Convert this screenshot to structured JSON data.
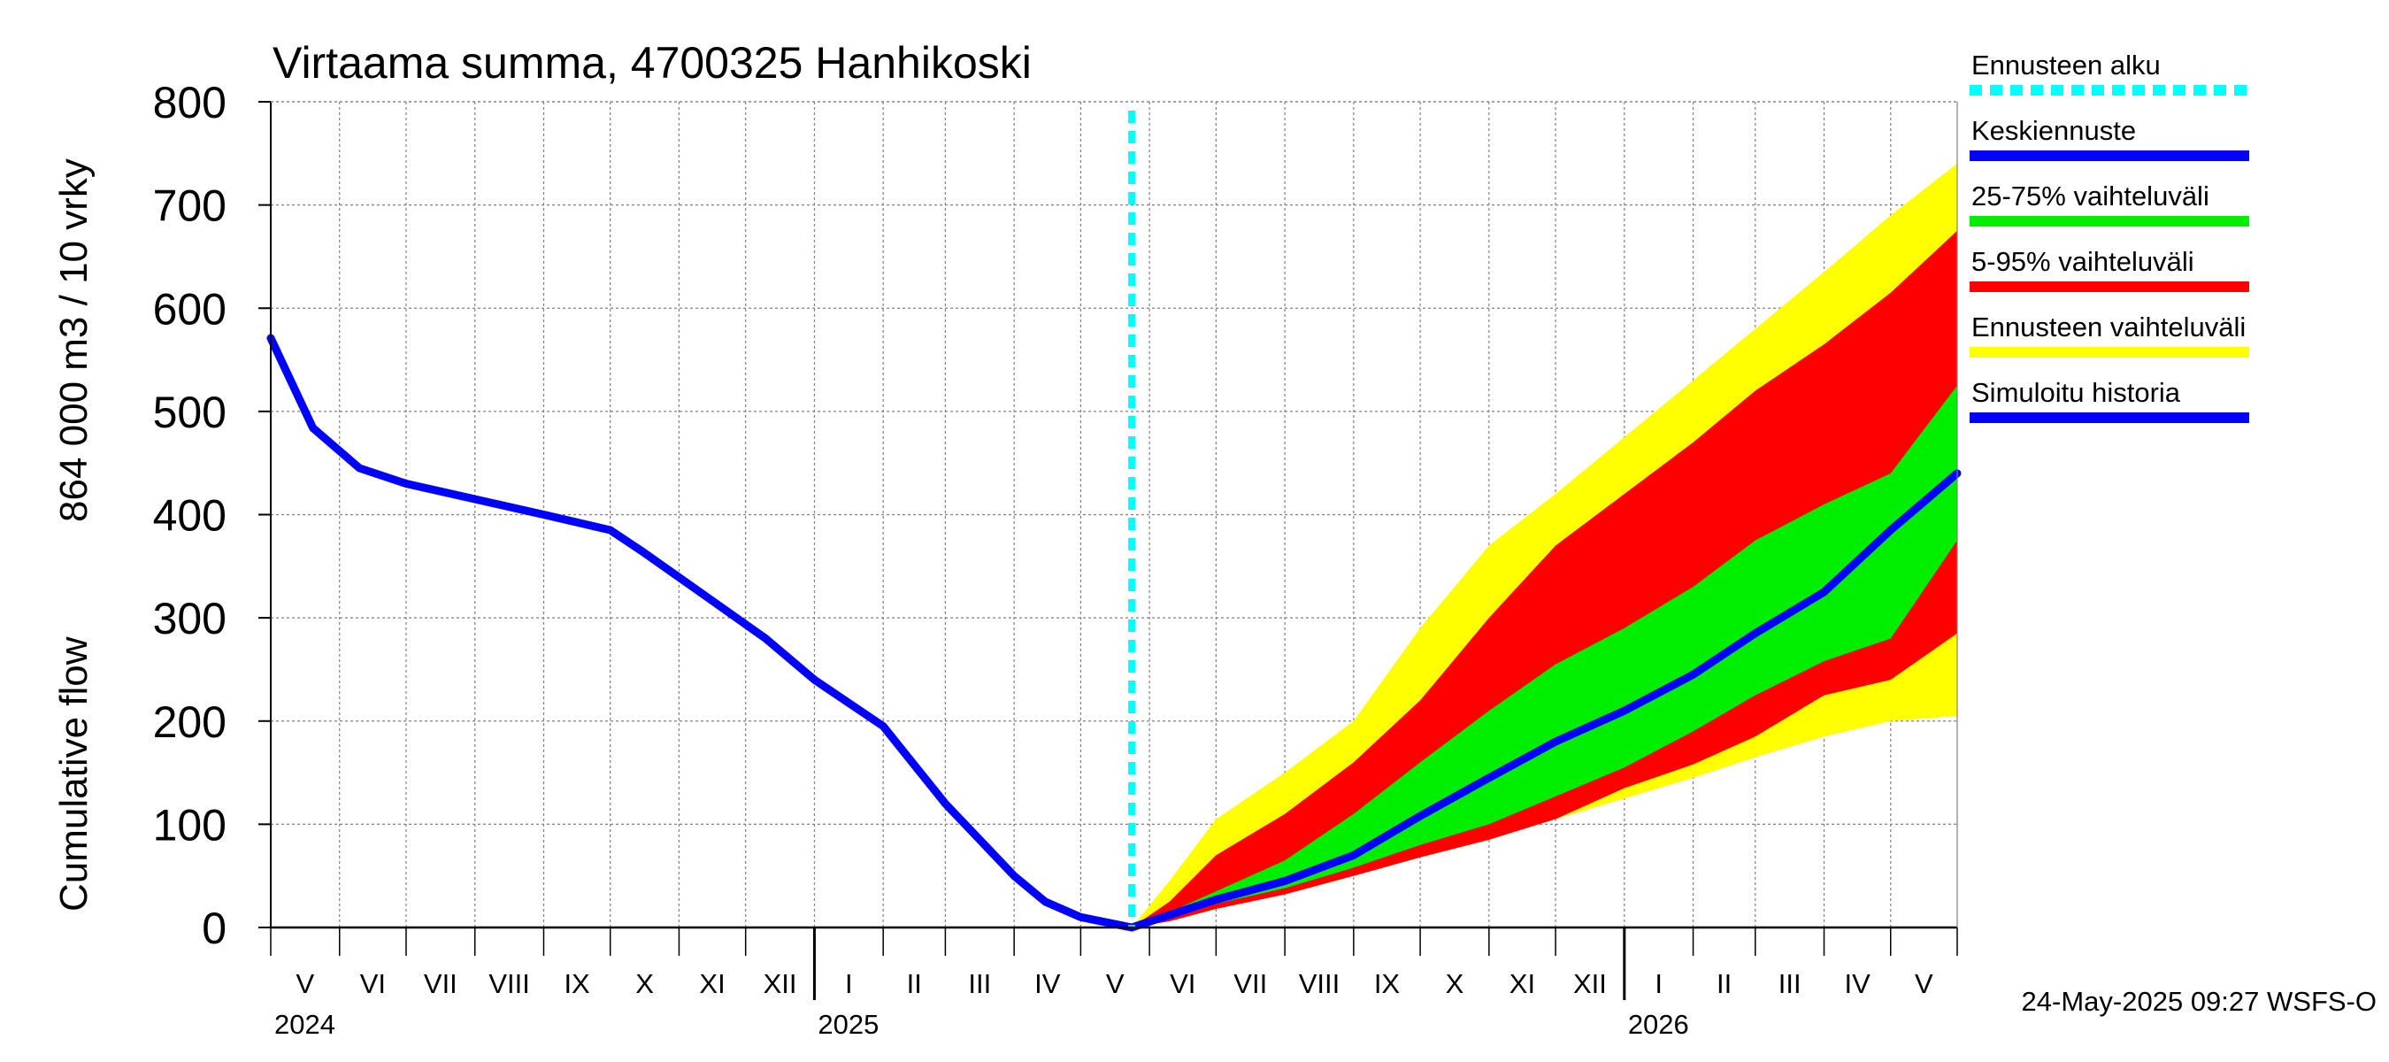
{
  "chart_data": {
    "type": "area",
    "title": "Virtaama summa, 4700325 Hanhikoski",
    "ylabel_right": "864 000 m3 / 10 vrky",
    "ylabel_left": "Cumulative flow",
    "ylim": [
      0,
      800
    ],
    "yticks": [
      "0",
      "100",
      "200",
      "300",
      "400",
      "500",
      "600",
      "700",
      "800"
    ],
    "xlim": [
      "2024-05-01",
      "2026-05-31"
    ],
    "months": [
      {
        "label": "V",
        "start": "2024-05-01"
      },
      {
        "label": "VI",
        "start": "2024-06-01"
      },
      {
        "label": "VII",
        "start": "2024-07-01"
      },
      {
        "label": "VIII",
        "start": "2024-08-01"
      },
      {
        "label": "IX",
        "start": "2024-09-01"
      },
      {
        "label": "X",
        "start": "2024-10-01"
      },
      {
        "label": "XI",
        "start": "2024-11-01"
      },
      {
        "label": "XII",
        "start": "2024-12-01"
      },
      {
        "label": "I",
        "start": "2025-01-01"
      },
      {
        "label": "II",
        "start": "2025-02-01"
      },
      {
        "label": "III",
        "start": "2025-03-01"
      },
      {
        "label": "IV",
        "start": "2025-04-01"
      },
      {
        "label": "V",
        "start": "2025-05-01"
      },
      {
        "label": "VI",
        "start": "2025-06-01"
      },
      {
        "label": "VII",
        "start": "2025-07-01"
      },
      {
        "label": "VIII",
        "start": "2025-08-01"
      },
      {
        "label": "IX",
        "start": "2025-09-01"
      },
      {
        "label": "X",
        "start": "2025-10-01"
      },
      {
        "label": "XI",
        "start": "2025-11-01"
      },
      {
        "label": "XII",
        "start": "2025-12-01"
      },
      {
        "label": "I",
        "start": "2026-01-01"
      },
      {
        "label": "II",
        "start": "2026-02-01"
      },
      {
        "label": "III",
        "start": "2026-03-01"
      },
      {
        "label": "IV",
        "start": "2026-04-01"
      },
      {
        "label": "V",
        "start": "2026-05-01"
      }
    ],
    "years": [
      {
        "label": "2024",
        "at": "2024-05-01"
      },
      {
        "label": "2025",
        "at": "2025-01-01"
      },
      {
        "label": "2026",
        "at": "2026-01-01"
      }
    ],
    "forecast_start": "2025-05-24",
    "colors": {
      "forecast_start": "#00ffff",
      "mean": "#0000ff",
      "band_25_75": "#00ee00",
      "band_5_95": "#ff0000",
      "band_full": "#ffff00",
      "history": "#0000ff",
      "grid": "#808080",
      "axis": "#000000"
    },
    "legend": [
      {
        "label": "Ennusteen alku",
        "key": "forecast_start",
        "style": "dashed"
      },
      {
        "label": "Keskiennuste",
        "key": "mean",
        "style": "line"
      },
      {
        "label": "25-75% vaihteluväli",
        "key": "band_25_75",
        "style": "line"
      },
      {
        "label": "5-95% vaihteluväli",
        "key": "band_5_95",
        "style": "line"
      },
      {
        "label": "Ennusteen vaihteluväli",
        "key": "band_full",
        "style": "line"
      },
      {
        "label": "Simuloitu historia",
        "key": "history",
        "style": "line"
      }
    ],
    "history": {
      "x": [
        "2024-05-01",
        "2024-05-20",
        "2024-06-10",
        "2024-07-01",
        "2024-08-01",
        "2024-09-01",
        "2024-10-01",
        "2024-10-15",
        "2024-11-15",
        "2024-12-10",
        "2025-01-01",
        "2025-02-01",
        "2025-03-01",
        "2025-04-01",
        "2025-04-15",
        "2025-05-01",
        "2025-05-24"
      ],
      "y": [
        571,
        484,
        445,
        430,
        415,
        400,
        385,
        365,
        318,
        280,
        240,
        195,
        120,
        50,
        25,
        10,
        0
      ]
    },
    "forecast": {
      "x": [
        "2025-05-24",
        "2025-06-10",
        "2025-07-01",
        "2025-08-01",
        "2025-09-01",
        "2025-10-01",
        "2025-11-01",
        "2025-12-01",
        "2026-01-01",
        "2026-02-01",
        "2026-03-01",
        "2026-04-01",
        "2026-05-01",
        "2026-05-31"
      ],
      "mean": [
        0,
        12,
        27,
        45,
        70,
        108,
        145,
        180,
        210,
        245,
        285,
        325,
        385,
        440
      ],
      "p25": [
        0,
        8,
        23,
        38,
        58,
        80,
        100,
        127,
        155,
        190,
        225,
        258,
        280,
        375
      ],
      "p75": [
        0,
        15,
        35,
        65,
        110,
        160,
        210,
        255,
        290,
        330,
        375,
        410,
        440,
        525
      ],
      "p5": [
        0,
        6,
        18,
        32,
        50,
        68,
        85,
        105,
        135,
        158,
        185,
        225,
        240,
        285
      ],
      "p95": [
        0,
        25,
        70,
        110,
        160,
        220,
        300,
        370,
        420,
        470,
        520,
        565,
        615,
        675
      ],
      "min": [
        0,
        6,
        18,
        32,
        50,
        68,
        85,
        105,
        125,
        145,
        165,
        185,
        200,
        205
      ],
      "max": [
        0,
        45,
        105,
        150,
        200,
        290,
        370,
        420,
        475,
        530,
        580,
        635,
        690,
        740
      ]
    }
  },
  "footer": "24-May-2025 09:27 WSFS-O"
}
